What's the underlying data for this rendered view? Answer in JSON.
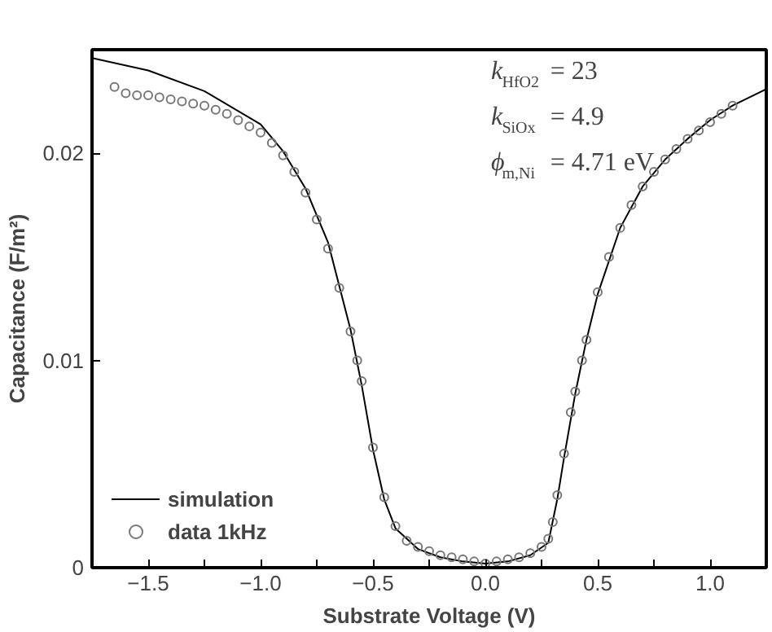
{
  "chart_data": {
    "type": "line",
    "xlabel": "Substrate Voltage (V)",
    "ylabel": "Capacitance (F/m²)",
    "annotations": [
      "k$_{HfO2}$ = 23",
      "k$_{SiOx}$ = 4.9",
      "ϕ$_{m,Ni}$ = 4.71 eV"
    ],
    "xlim": [
      -1.75,
      1.25
    ],
    "ylim": [
      0,
      0.025
    ],
    "xticks": [
      {
        "value": -1.5,
        "label": "−1.5"
      },
      {
        "value": -1.25,
        "label": null
      },
      {
        "value": -1.0,
        "label": "−1.0"
      },
      {
        "value": -0.75,
        "label": null
      },
      {
        "value": -0.5,
        "label": "−0.5"
      },
      {
        "value": -0.25,
        "label": null
      },
      {
        "value": 0,
        "label": "0.0"
      },
      {
        "value": 0.25,
        "label": null
      },
      {
        "value": 0.5,
        "label": "0.5"
      },
      {
        "value": 0.75,
        "label": null
      },
      {
        "value": 1.0,
        "label": "1.0"
      }
    ],
    "yticks": [
      0,
      0.01,
      0.02
    ],
    "grid": false,
    "legend": "bottom left",
    "series": [
      {
        "name": "simulation",
        "color": "#000000",
        "marker": "none",
        "x": [
          -1.75,
          -1.5,
          -1.25,
          -1.0,
          -0.9,
          -0.8,
          -0.7,
          -0.6,
          -0.55,
          -0.5,
          -0.45,
          -0.4,
          -0.3,
          -0.2,
          -0.1,
          0,
          0.1,
          0.2,
          0.28,
          0.32,
          0.35,
          0.4,
          0.45,
          0.5,
          0.6,
          0.7,
          0.8,
          0.9,
          1.0,
          1.1,
          1.25
        ],
        "values": [
          0.0246,
          0.024,
          0.023,
          0.0214,
          0.0201,
          0.0183,
          0.0157,
          0.0115,
          0.0088,
          0.0057,
          0.0033,
          0.0019,
          0.0009,
          0.0005,
          0.0003,
          0.0002,
          0.0003,
          0.0006,
          0.0012,
          0.0033,
          0.0053,
          0.0084,
          0.011,
          0.0132,
          0.0164,
          0.0184,
          0.0197,
          0.0207,
          0.0216,
          0.0223,
          0.0231
        ]
      },
      {
        "name": "data 1kHz",
        "type": "scatter",
        "color": "#777777",
        "marker": "circle",
        "x": [
          -1.65,
          -1.6,
          -1.55,
          -1.5,
          -1.45,
          -1.4,
          -1.35,
          -1.3,
          -1.25,
          -1.2,
          -1.15,
          -1.1,
          -1.05,
          -1.0,
          -0.95,
          -0.9,
          -0.85,
          -0.8,
          -0.75,
          -0.7,
          -0.65,
          -0.6,
          -0.57,
          -0.55,
          -0.5,
          -0.45,
          -0.4,
          -0.35,
          -0.3,
          -0.25,
          -0.2,
          -0.15,
          -0.1,
          -0.05,
          0,
          0.05,
          0.1,
          0.15,
          0.2,
          0.25,
          0.28,
          0.3,
          0.32,
          0.35,
          0.38,
          0.4,
          0.43,
          0.45,
          0.5,
          0.55,
          0.6,
          0.65,
          0.7,
          0.75,
          0.8,
          0.85,
          0.9,
          0.95,
          1.0,
          1.05,
          1.1
        ],
        "values": [
          0.0232,
          0.0229,
          0.0228,
          0.0228,
          0.0227,
          0.0226,
          0.0225,
          0.0224,
          0.0223,
          0.0221,
          0.0219,
          0.0216,
          0.0213,
          0.021,
          0.0205,
          0.0199,
          0.0191,
          0.0181,
          0.0168,
          0.0154,
          0.0135,
          0.0114,
          0.01,
          0.009,
          0.0058,
          0.0034,
          0.002,
          0.0013,
          0.001,
          0.0008,
          0.0006,
          0.0005,
          0.0004,
          0.0003,
          0.0002,
          0.0003,
          0.0004,
          0.0005,
          0.0007,
          0.001,
          0.0014,
          0.0022,
          0.0035,
          0.0055,
          0.0075,
          0.0085,
          0.01,
          0.011,
          0.0133,
          0.015,
          0.0164,
          0.0175,
          0.0184,
          0.0191,
          0.0197,
          0.0202,
          0.0207,
          0.0211,
          0.0215,
          0.0219,
          0.0223
        ]
      }
    ]
  }
}
